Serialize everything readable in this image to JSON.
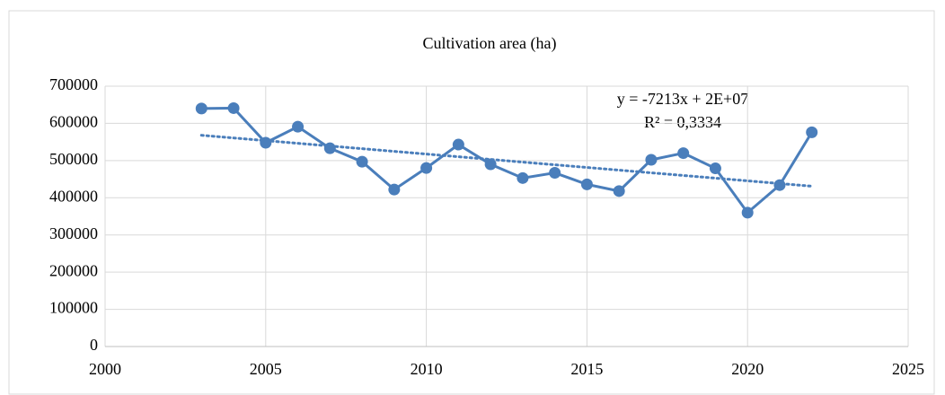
{
  "chart_data": {
    "type": "line",
    "title": "Cultivation area (ha)",
    "x": [
      2003,
      2004,
      2005,
      2006,
      2007,
      2008,
      2009,
      2010,
      2011,
      2012,
      2013,
      2014,
      2015,
      2016,
      2017,
      2018,
      2019,
      2020,
      2021,
      2022
    ],
    "series": [
      {
        "name": "Cultivation area (ha)",
        "color": "#4a7ebb",
        "values": [
          640000,
          641000,
          548000,
          591000,
          533000,
          497000,
          422000,
          480000,
          543000,
          490000,
          453000,
          467000,
          436000,
          418000,
          502000,
          520000,
          479000,
          360000,
          434000,
          576000
        ]
      }
    ],
    "trendline": {
      "x": [
        2003,
        2022
      ],
      "values": [
        568000,
        431000
      ],
      "color": "#4a7ebb"
    },
    "annotations": [
      "y = -7213x + 2E+07",
      "R² = 0,3334"
    ],
    "xlim": [
      2000,
      2025
    ],
    "xticks": [
      2000,
      2005,
      2010,
      2015,
      2020,
      2025
    ],
    "ylim": [
      0,
      700000
    ],
    "yticks": [
      0,
      100000,
      200000,
      300000,
      400000,
      500000,
      600000,
      700000
    ],
    "grid": true
  }
}
